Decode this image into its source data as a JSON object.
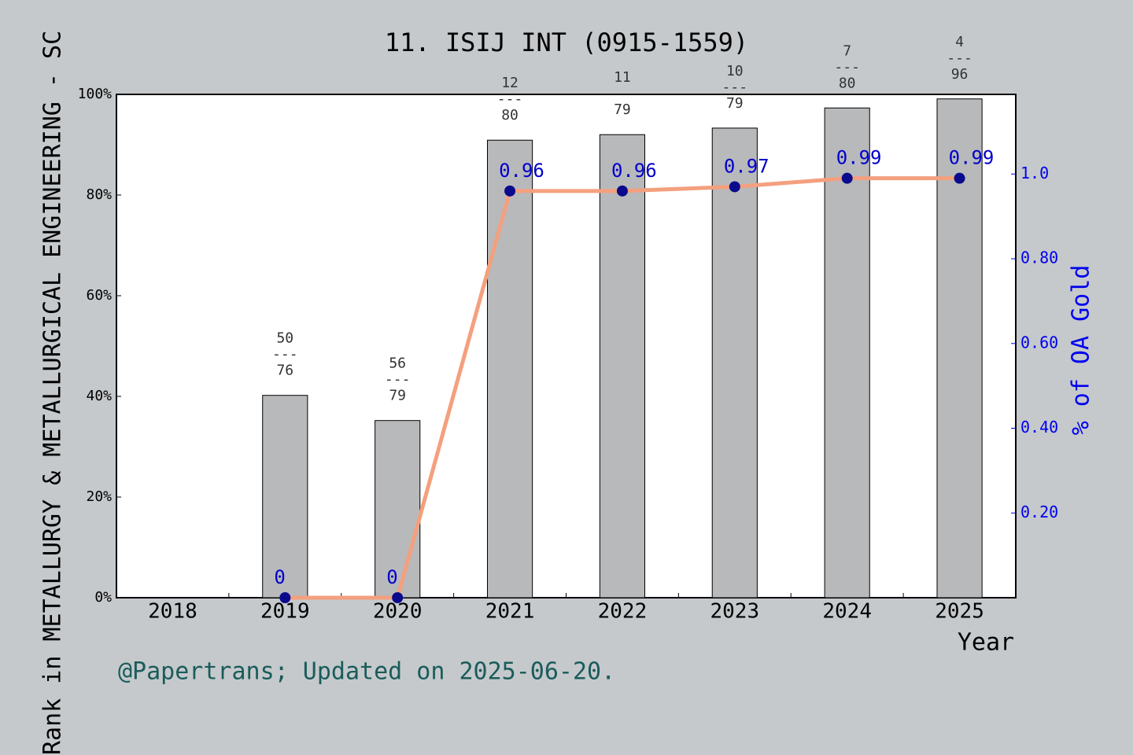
{
  "chart_data": {
    "type": "bar_line",
    "title": "11. ISIJ INT (0915-1559)",
    "xlabel": "Year",
    "ylabel": "Rank in METALLURGY & METALLURGICAL ENGINEERING - SC",
    "y2label": "% of OA Gold",
    "footer": "@Papertrans; Updated on 2025-06-20.",
    "categories": [
      "2018",
      "2019",
      "2020",
      "2021",
      "2022",
      "2023",
      "2024",
      "2025"
    ],
    "series": [
      {
        "type": "bar",
        "color": "#b8b9bb",
        "values": [
          null,
          40.2,
          35.2,
          90.9,
          92.0,
          93.3,
          97.3,
          99.1
        ],
        "annotations": [
          null,
          "50\n---\n76",
          "56\n---\n79",
          "12\n---\n80",
          "11\n\n79",
          "10\n---\n79",
          "7\n---\n80",
          "4\n---\n96"
        ]
      },
      {
        "type": "line",
        "axis": "y2",
        "color": "#f4a07e",
        "marker_color": "#0a0a8c",
        "label_color": "#0000cc",
        "values": [
          null,
          0,
          0,
          0.96,
          0.96,
          0.97,
          0.99,
          0.99
        ]
      }
    ],
    "ylim": [
      0,
      100
    ],
    "yticks": [
      {
        "value": 0,
        "label": "0%"
      },
      {
        "value": 20,
        "label": "20%"
      },
      {
        "value": 40,
        "label": "40%"
      },
      {
        "value": 60,
        "label": "60%"
      },
      {
        "value": 80,
        "label": "80%"
      },
      {
        "value": 100,
        "label": "100%"
      }
    ],
    "y2lim": [
      0,
      1.188
    ],
    "y2ticks": [
      {
        "value": 0.2,
        "label": "0.20"
      },
      {
        "value": 0.4,
        "label": "0.40"
      },
      {
        "value": 0.6,
        "label": "0.60"
      },
      {
        "value": 0.8,
        "label": "0.80"
      },
      {
        "value": 1,
        "label": "1.0"
      }
    ],
    "grid": false
  }
}
